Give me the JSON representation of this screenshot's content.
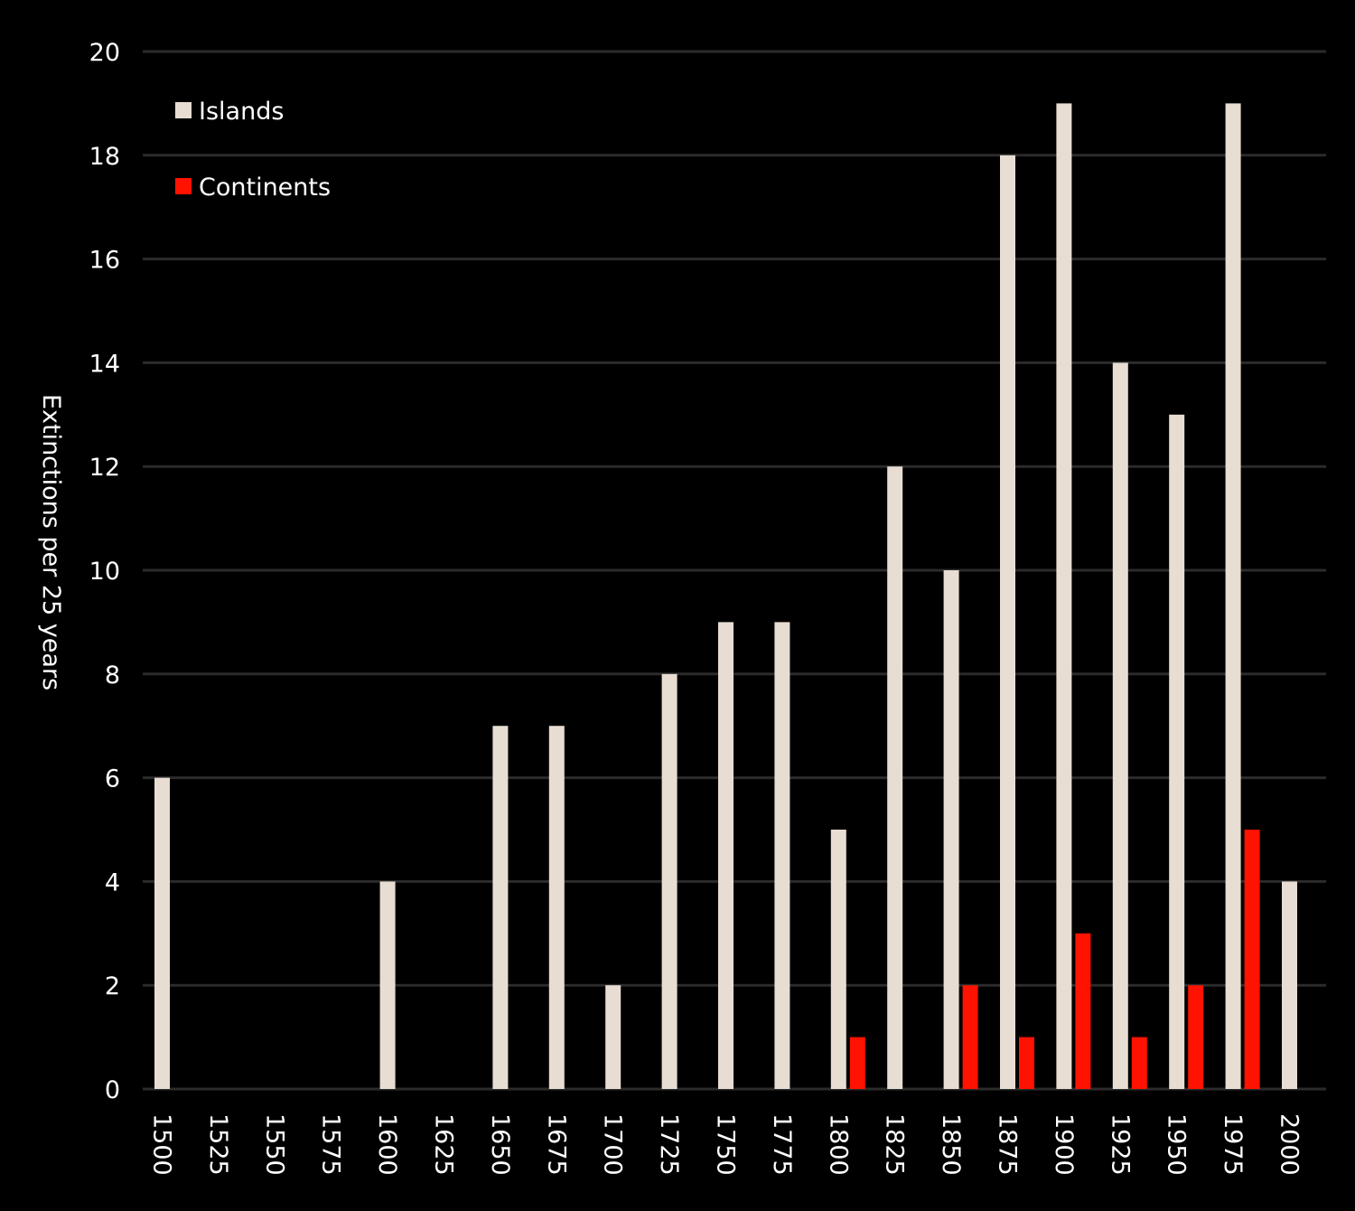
{
  "chart_data": {
    "type": "bar",
    "title": "",
    "xlabel": "",
    "ylabel": "Extinctions per 25  years",
    "categories": [
      "1500",
      "1525",
      "1550",
      "1575",
      "1600",
      "1625",
      "1650",
      "1675",
      "1700",
      "1725",
      "1750",
      "1775",
      "1800",
      "1825",
      "1850",
      "1875",
      "1900",
      "1925",
      "1950",
      "1975",
      "2000"
    ],
    "series": [
      {
        "name": "Islands",
        "color": "#e8ddd3",
        "values": [
          6,
          0,
          0,
          0,
          4,
          0,
          7,
          7,
          2,
          8,
          9,
          9,
          5,
          12,
          10,
          18,
          19,
          14,
          13,
          19,
          4
        ]
      },
      {
        "name": "Continents",
        "color": "#ff1200",
        "values": [
          0,
          0,
          0,
          0,
          0,
          0,
          0,
          0,
          0,
          0,
          0,
          0,
          1,
          0,
          2,
          1,
          3,
          1,
          2,
          5,
          0
        ]
      }
    ],
    "ylim": [
      0,
      20
    ],
    "yticks": [
      0,
      2,
      4,
      6,
      8,
      10,
      12,
      14,
      16,
      18,
      20
    ],
    "grid": true,
    "legend_position": "top-left",
    "background": "#000000",
    "gridline_color": "#2b2b2b"
  }
}
